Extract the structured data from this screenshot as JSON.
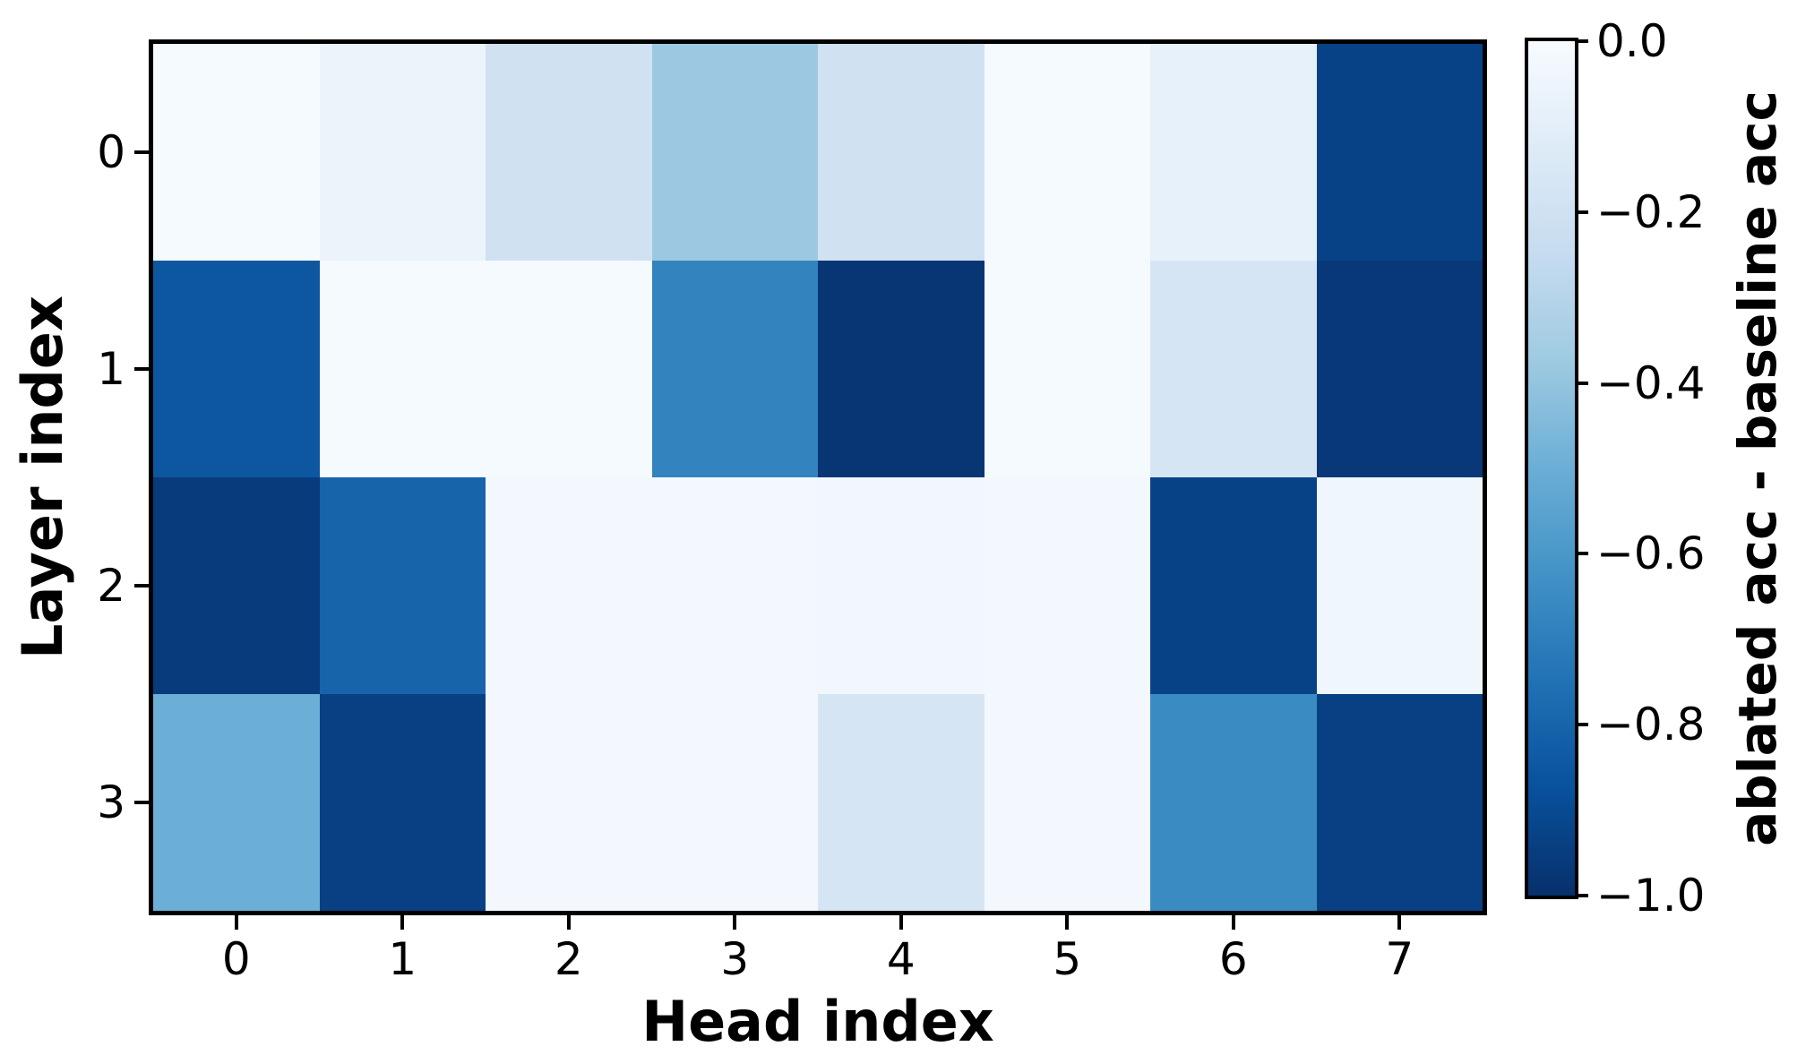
{
  "chart_data": {
    "type": "heatmap",
    "title": "",
    "xlabel": "Head index",
    "ylabel": "Layer index",
    "x_tick_labels": [
      "0",
      "1",
      "2",
      "3",
      "4",
      "5",
      "6",
      "7"
    ],
    "y_tick_labels": [
      "0",
      "1",
      "2",
      "3"
    ],
    "values": [
      [
        -0.01,
        -0.06,
        -0.2,
        -0.38,
        -0.2,
        -0.01,
        -0.08,
        -0.93
      ],
      [
        -0.85,
        -0.01,
        -0.01,
        -0.68,
        -0.98,
        -0.01,
        -0.17,
        -0.97
      ],
      [
        -0.96,
        -0.8,
        -0.02,
        -0.02,
        -0.03,
        -0.02,
        -0.93,
        -0.04
      ],
      [
        -0.5,
        -0.94,
        -0.02,
        -0.02,
        -0.17,
        -0.02,
        -0.65,
        -0.94
      ]
    ],
    "colorbar": {
      "label": "ablated acc - baseline acc",
      "tick_labels": [
        "0.0",
        "−0.2",
        "−0.4",
        "−0.6",
        "−0.8",
        "−1.0"
      ],
      "vmax": 0.0,
      "vmin": -1.0,
      "colormap_name": "Blues",
      "colormap_anchors": [
        "#f7fbff",
        "#deebf7",
        "#c6dbef",
        "#9ecae1",
        "#6baed6",
        "#4292c6",
        "#2171b5",
        "#08519c",
        "#08306b"
      ]
    },
    "grid": false,
    "legend_position": "none"
  }
}
